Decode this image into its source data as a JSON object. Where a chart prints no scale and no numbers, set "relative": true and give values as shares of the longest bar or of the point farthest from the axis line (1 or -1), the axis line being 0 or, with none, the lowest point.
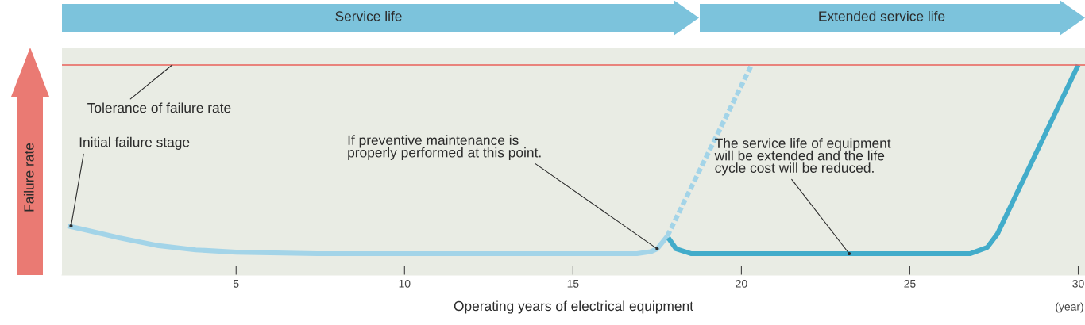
{
  "chart_data": {
    "type": "line",
    "relative": true,
    "xlabel": "Operating years of electrical equipment",
    "ylabel": "Failure rate",
    "xlim": [
      -0.17,
      30.2
    ],
    "xticks": [
      5,
      10,
      15,
      20,
      25,
      30
    ],
    "grid": false,
    "marker": "none",
    "series": [
      {
        "color": "#a3d4e8",
        "line_style": "solid",
        "x": [
          0.0,
          0.8,
          1.53,
          2.7,
          3.8,
          5.0,
          7.4,
          10,
          13,
          16.9,
          17.3,
          17.5,
          17.8
        ],
        "values": [
          0.234,
          0.205,
          0.177,
          0.14,
          0.12,
          0.109,
          0.102,
          0.102,
          0.102,
          0.102,
          0.111,
          0.125,
          0.185
        ]
      },
      {
        "color": "#a3d4e8",
        "line_style": "dashed",
        "x": [
          17.8,
          20.3
        ],
        "values": [
          0.185,
          1
        ]
      },
      {
        "color": "#42acca",
        "line_style": "solid",
        "x": [
          17.83,
          18.06,
          18.5,
          22,
          26.8,
          27.3,
          27.6,
          30.0
        ],
        "values": [
          0.177,
          0.125,
          0.102,
          0.102,
          0.102,
          0.132,
          0.196,
          1
        ]
      }
    ],
    "ref_lines": [
      {
        "axis": "y",
        "value": 1,
        "label": "Tolerance of failure rate",
        "color": "#e8605a",
        "line_style": "solid"
      }
    ],
    "annotations": [
      {
        "text": "Initial failure stage",
        "x": 0.1,
        "y": 0.234
      },
      {
        "text": "If preventive maintenance is\nproperly performed at this point.",
        "x": 17.5,
        "y": 0.125
      },
      {
        "text": "The service life of equipment\nwill be extended and the life\ncycle cost will be reduced.",
        "x": 23.2,
        "y": 0.102
      },
      "Service life",
      "Extended service life",
      "(year)"
    ]
  }
}
